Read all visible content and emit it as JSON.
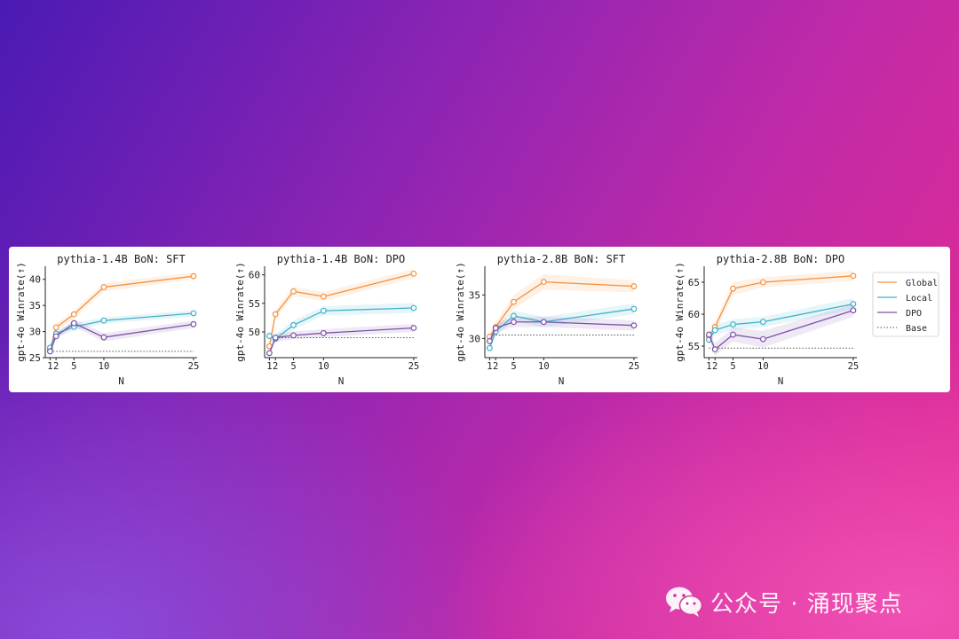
{
  "colors": {
    "global": "#f5923f",
    "local": "#3fb2c9",
    "dpo": "#7d52a8",
    "base": "#555555"
  },
  "legend": {
    "items": [
      {
        "key": "global",
        "label": "Global",
        "style": "line"
      },
      {
        "key": "local",
        "label": "Local",
        "style": "line"
      },
      {
        "key": "dpo",
        "label": "DPO",
        "style": "line"
      },
      {
        "key": "base",
        "label": "Base",
        "style": "dotted"
      }
    ]
  },
  "chart_data": [
    {
      "type": "line",
      "title": "pythia-1.4B BoN: SFT",
      "xlabel": "N",
      "ylabel": "gpt-4o Winrate(↑)",
      "x": [
        1,
        2,
        5,
        10,
        25
      ],
      "xticks": [
        1,
        2,
        5,
        10,
        25
      ],
      "xtick_labels": [
        "1",
        "2",
        "5",
        "10",
        "25"
      ],
      "ylim": [
        25,
        42.5
      ],
      "yticks": [
        25,
        30,
        35,
        40
      ],
      "series": [
        {
          "key": "global",
          "name": "Global",
          "values": [
            26.5,
            30.8,
            33.3,
            38.5,
            40.6
          ],
          "band": [
            0.6,
            0.7,
            0.7,
            0.8,
            0.7
          ]
        },
        {
          "key": "local",
          "name": "Local",
          "values": [
            26.9,
            29.6,
            30.9,
            32.1,
            33.5
          ],
          "band": [
            0.5,
            0.6,
            0.7,
            0.6,
            0.6
          ]
        },
        {
          "key": "dpo",
          "name": "DPO",
          "values": [
            26.2,
            29.1,
            31.6,
            28.9,
            31.4
          ],
          "band": [
            0.5,
            0.6,
            0.7,
            0.8,
            0.7
          ]
        }
      ],
      "base": 26.2
    },
    {
      "type": "line",
      "title": "pythia-1.4B BoN: DPO",
      "xlabel": "N",
      "ylabel": "gpt-4o Winrate(↑)",
      "x": [
        1,
        2,
        5,
        10,
        25
      ],
      "xticks": [
        1,
        2,
        5,
        10,
        25
      ],
      "xtick_labels": [
        "1",
        "2",
        "5",
        "10",
        "25"
      ],
      "ylim": [
        45.5,
        61.5
      ],
      "yticks": [
        50,
        55,
        60
      ],
      "series": [
        {
          "key": "global",
          "name": "Global",
          "values": [
            47.5,
            53.1,
            57.1,
            56.2,
            60.2
          ],
          "band": [
            0.8,
            0.8,
            0.8,
            0.8,
            0.8
          ]
        },
        {
          "key": "local",
          "name": "Local",
          "values": [
            49.3,
            48.8,
            51.2,
            53.7,
            54.2
          ],
          "band": [
            0.7,
            0.8,
            0.8,
            0.8,
            0.9
          ]
        },
        {
          "key": "dpo",
          "name": "DPO",
          "values": [
            46.3,
            49.0,
            49.4,
            49.8,
            50.7
          ],
          "band": [
            0.7,
            0.7,
            0.7,
            0.7,
            0.7
          ]
        }
      ],
      "base": 49.0
    },
    {
      "type": "line",
      "title": "pythia-2.8B BoN: SFT",
      "xlabel": "N",
      "ylabel": "gpt-4o Winrate(↑)",
      "x": [
        1,
        2,
        5,
        10,
        25
      ],
      "xticks": [
        1,
        2,
        5,
        10,
        25
      ],
      "xtick_labels": [
        "1",
        "2",
        "5",
        "10",
        "25"
      ],
      "ylim": [
        27.8,
        38.3
      ],
      "yticks": [
        30,
        35
      ],
      "series": [
        {
          "key": "global",
          "name": "Global",
          "values": [
            30.2,
            31.3,
            34.2,
            36.5,
            36.0
          ],
          "band": [
            0.5,
            0.6,
            0.8,
            0.9,
            0.7
          ]
        },
        {
          "key": "local",
          "name": "Local",
          "values": [
            28.9,
            30.8,
            32.6,
            31.9,
            33.4
          ],
          "band": [
            0.4,
            0.5,
            0.6,
            0.6,
            0.6
          ]
        },
        {
          "key": "dpo",
          "name": "DPO",
          "values": [
            29.7,
            31.2,
            31.9,
            31.9,
            31.5
          ],
          "band": [
            0.4,
            0.5,
            0.6,
            0.6,
            0.6
          ]
        }
      ],
      "base": 30.4
    },
    {
      "type": "line",
      "title": "pythia-2.8B BoN: DPO",
      "xlabel": "N",
      "ylabel": "gpt-4o Winrate(↑)",
      "x": [
        1,
        2,
        5,
        10,
        25
      ],
      "xticks": [
        1,
        2,
        5,
        10,
        25
      ],
      "xtick_labels": [
        "1",
        "2",
        "5",
        "10",
        "25"
      ],
      "ylim": [
        53.2,
        67.5
      ],
      "yticks": [
        55,
        60,
        65
      ],
      "series": [
        {
          "key": "global",
          "name": "Global",
          "values": [
            56.5,
            58.0,
            64.0,
            65.0,
            66.0
          ],
          "band": [
            0.8,
            0.9,
            1.0,
            0.8,
            0.8
          ]
        },
        {
          "key": "local",
          "name": "Local",
          "values": [
            56.0,
            57.5,
            58.4,
            58.8,
            61.6
          ],
          "band": [
            0.7,
            0.8,
            0.8,
            0.8,
            0.9
          ]
        },
        {
          "key": "dpo",
          "name": "DPO",
          "values": [
            56.8,
            54.5,
            56.8,
            56.1,
            60.6
          ],
          "band": [
            0.8,
            1.0,
            1.1,
            1.3,
            1.0
          ]
        }
      ],
      "base": 54.7
    }
  ],
  "watermark": {
    "icon": "wechat-icon",
    "text": "公众号 · 涌现聚点"
  }
}
